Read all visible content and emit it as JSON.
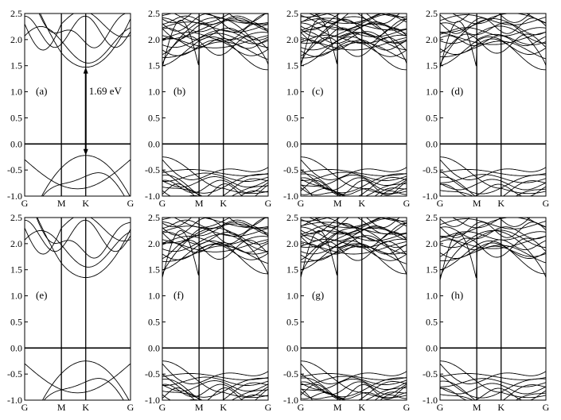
{
  "chart_data": {
    "type": "line",
    "ylim": [
      -1.0,
      2.5
    ],
    "yticks": [
      "2.5",
      "2.0",
      "1.5",
      "1.0",
      "0.5",
      "0.0",
      "-0.5",
      "-1.0"
    ],
    "path_labels": [
      "G",
      "M",
      "K",
      "G"
    ],
    "annotation": {
      "panel": "(a)",
      "text": "1.69 eV",
      "k_point": "K",
      "from_energy": -0.22,
      "to_energy": 1.47
    },
    "panels": [
      {
        "label": "(a)",
        "family": "a",
        "cb_min": 1.47,
        "vb_max": -0.22
      },
      {
        "label": "(b)",
        "family": "b",
        "cb_min": 1.47,
        "vb_max": -0.25
      },
      {
        "label": "(c)",
        "family": "c",
        "cb_min": 1.49,
        "vb_max": -0.25
      },
      {
        "label": "(d)",
        "family": "d",
        "cb_min": 1.45,
        "vb_max": -0.25
      },
      {
        "label": "(e)",
        "family": "a",
        "cb_min": 1.35,
        "vb_max": -0.25
      },
      {
        "label": "(f)",
        "family": "b",
        "cb_min": 1.35,
        "vb_max": -0.25
      },
      {
        "label": "(g)",
        "family": "c",
        "cb_min": 1.35,
        "vb_max": -0.25
      },
      {
        "label": "(h)",
        "family": "d",
        "cb_min": 1.3,
        "vb_max": -0.25
      }
    ]
  }
}
